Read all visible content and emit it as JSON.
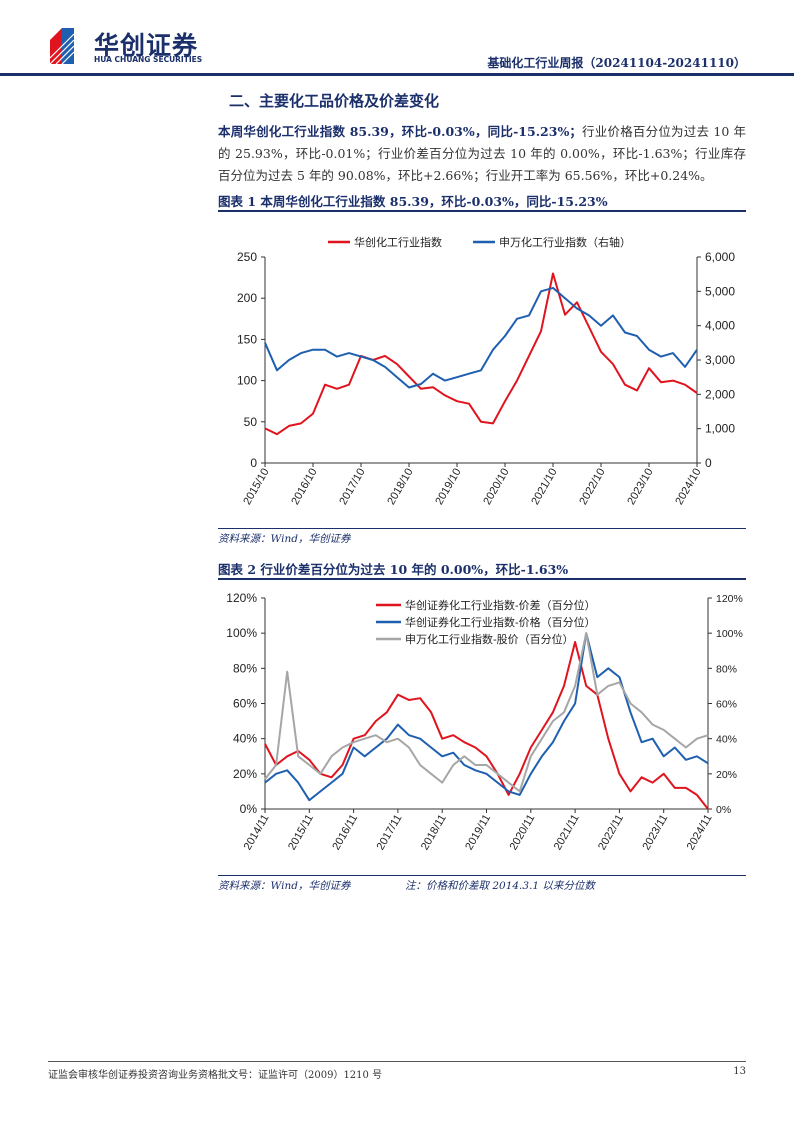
{
  "header": {
    "logo_cn": "华创证券",
    "logo_en": "HUA CHUANG SECURITIES",
    "report_title": "基础化工行业周报（20241104-20241110）"
  },
  "section_title": "二、主要化工品价格及价差变化",
  "paragraph": {
    "bold": "本周华创化工行业指数 85.39，环比-0.03%，同比-15.23%；",
    "rest": "行业价格百分位为过去 10 年的 25.93%，环比-0.01%；行业价差百分位为过去 10 年的 0.00%，环比-1.63%；行业库存百分位为过去 5 年的 90.08%，环比+2.66%；行业开工率为 65.56%，环比+0.24%。"
  },
  "figure1": {
    "title": "图表 1   本周华创化工行业指数 85.39，环比-0.03%，同比-15.23%",
    "source": "资料来源：Wind，华创证券"
  },
  "figure2": {
    "title": "图表 2   行业价差百分位为过去 10 年的 0.00%，环比-1.63%",
    "source": "资料来源：Wind，华创证券",
    "note": "注：价格和价差取 2014.3.1 以来分位数"
  },
  "footer": {
    "text": "证监会审核华创证券投资咨询业务资格批文号：证监许可（2009）1210 号",
    "page": "13"
  },
  "chart_data": [
    {
      "type": "line",
      "xticks": [
        "2015/10",
        "2016/10",
        "2017/10",
        "2018/10",
        "2019/10",
        "2020/10",
        "2021/10",
        "2022/10",
        "2023/10",
        "2024/10"
      ],
      "x": [
        "2015/10",
        "2016/01",
        "2016/04",
        "2016/07",
        "2016/10",
        "2017/01",
        "2017/04",
        "2017/07",
        "2017/10",
        "2018/01",
        "2018/04",
        "2018/07",
        "2018/10",
        "2019/01",
        "2019/04",
        "2019/07",
        "2019/10",
        "2020/01",
        "2020/04",
        "2020/07",
        "2020/10",
        "2021/01",
        "2021/04",
        "2021/07",
        "2021/10",
        "2022/01",
        "2022/04",
        "2022/07",
        "2022/10",
        "2023/01",
        "2023/04",
        "2023/07",
        "2023/10",
        "2024/01",
        "2024/04",
        "2024/07",
        "2024/10"
      ],
      "ylim": [
        0,
        250
      ],
      "yticks": [
        "0",
        "50",
        "100",
        "150",
        "200",
        "250"
      ],
      "y2lim": [
        0,
        6000
      ],
      "y2ticks": [
        "0",
        "1,000",
        "2,000",
        "3,000",
        "4,000",
        "5,000",
        "6,000"
      ],
      "legend": "top",
      "grid": false,
      "series": [
        {
          "name": "华创化工行业指数",
          "axis": "left",
          "color": "#e0141e",
          "values": [
            42,
            35,
            45,
            48,
            60,
            95,
            90,
            95,
            130,
            125,
            130,
            120,
            105,
            90,
            92,
            82,
            75,
            72,
            50,
            48,
            75,
            100,
            130,
            160,
            230,
            180,
            195,
            165,
            135,
            120,
            95,
            88,
            115,
            98,
            100,
            95,
            85
          ]
        },
        {
          "name": "申万化工行业指数（右轴）",
          "axis": "right",
          "color": "#1f5fb0",
          "values": [
            3500,
            2700,
            3000,
            3200,
            3300,
            3300,
            3100,
            3200,
            3100,
            3000,
            2800,
            2500,
            2200,
            2300,
            2600,
            2400,
            2500,
            2600,
            2700,
            3300,
            3700,
            4200,
            4300,
            5000,
            5100,
            4800,
            4500,
            4300,
            4000,
            4300,
            3800,
            3700,
            3300,
            3100,
            3200,
            2800,
            3300
          ]
        }
      ]
    },
    {
      "type": "line",
      "xticks": [
        "2014/11",
        "2015/11",
        "2016/11",
        "2017/11",
        "2018/11",
        "2019/11",
        "2020/11",
        "2021/11",
        "2022/11",
        "2023/11",
        "2024/11"
      ],
      "x": [
        "2014/11",
        "2015/02",
        "2015/05",
        "2015/08",
        "2015/11",
        "2016/02",
        "2016/05",
        "2016/08",
        "2016/11",
        "2017/02",
        "2017/05",
        "2017/08",
        "2017/11",
        "2018/02",
        "2018/05",
        "2018/08",
        "2018/11",
        "2019/02",
        "2019/05",
        "2019/08",
        "2019/11",
        "2020/02",
        "2020/05",
        "2020/08",
        "2020/11",
        "2021/02",
        "2021/05",
        "2021/08",
        "2021/11",
        "2022/02",
        "2022/05",
        "2022/08",
        "2022/11",
        "2023/02",
        "2023/05",
        "2023/08",
        "2023/11",
        "2024/02",
        "2024/05",
        "2024/08",
        "2024/11"
      ],
      "ylim": [
        0,
        120
      ],
      "yticks": [
        "0%",
        "20%",
        "40%",
        "60%",
        "80%",
        "100%",
        "120%"
      ],
      "y2ticks": [
        "0%",
        "20%",
        "40%",
        "60%",
        "80%",
        "100%",
        "120%"
      ],
      "legend": "top",
      "grid": false,
      "series": [
        {
          "name": "华创证券化工行业指数-价差（百分位）",
          "color": "#e0141e",
          "values": [
            37,
            25,
            30,
            33,
            28,
            20,
            18,
            25,
            40,
            42,
            50,
            55,
            65,
            62,
            63,
            55,
            40,
            42,
            38,
            35,
            30,
            20,
            8,
            20,
            35,
            45,
            55,
            70,
            95,
            70,
            65,
            40,
            20,
            10,
            18,
            15,
            20,
            12,
            12,
            8,
            0
          ]
        },
        {
          "name": "华创证券化工行业指数-价格（百分位）",
          "color": "#1f5fb0",
          "values": [
            15,
            20,
            22,
            15,
            5,
            10,
            15,
            20,
            35,
            30,
            35,
            40,
            48,
            42,
            40,
            35,
            30,
            32,
            25,
            22,
            20,
            15,
            10,
            8,
            20,
            30,
            38,
            50,
            60,
            100,
            75,
            80,
            75,
            55,
            38,
            40,
            30,
            35,
            28,
            30,
            26
          ]
        },
        {
          "name": "申万化工行业指数-股价（百分位）",
          "color": "#a6a6a6",
          "values": [
            17,
            25,
            78,
            30,
            25,
            20,
            30,
            35,
            38,
            40,
            42,
            38,
            40,
            35,
            25,
            20,
            15,
            25,
            30,
            25,
            25,
            20,
            15,
            10,
            30,
            40,
            50,
            55,
            70,
            100,
            65,
            70,
            72,
            60,
            55,
            48,
            45,
            40,
            35,
            40,
            42
          ]
        }
      ]
    }
  ]
}
